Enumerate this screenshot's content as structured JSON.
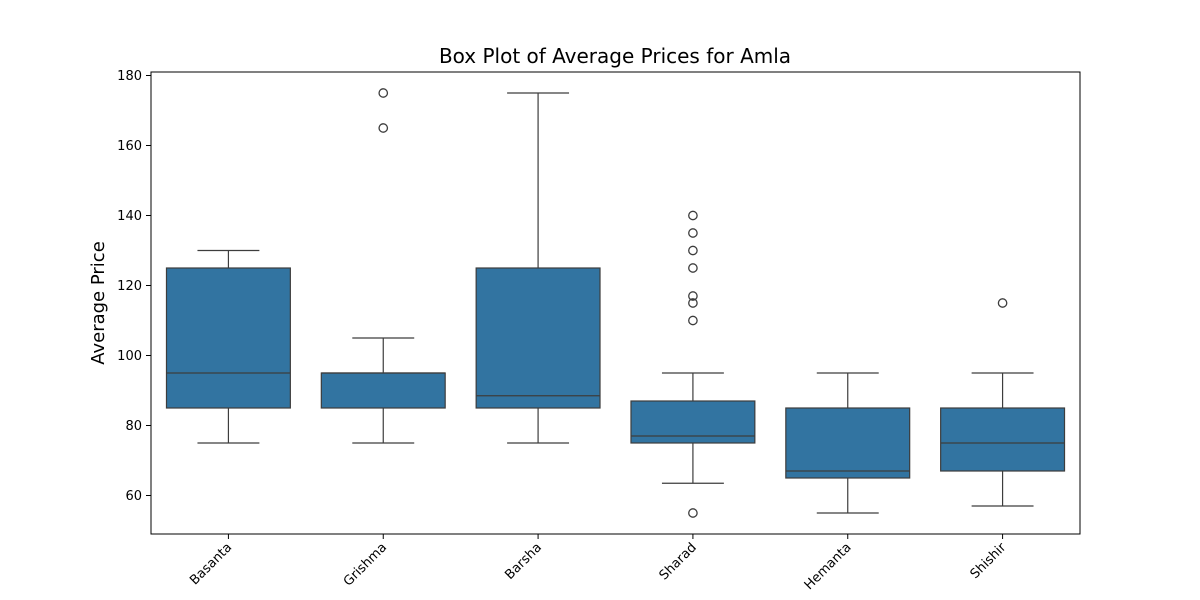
{
  "chart_data": {
    "type": "box",
    "title": "Box Plot of Average Prices for Amla",
    "xlabel": "",
    "ylabel": "Average Price",
    "ylim": [
      49,
      181
    ],
    "yticks": [
      60,
      80,
      100,
      120,
      140,
      160,
      180
    ],
    "grid": false,
    "box_color": "#3274a1",
    "line_color": "#3d3d3d",
    "categories": [
      "Basanta",
      "Grishma",
      "Barsha",
      "Sharad",
      "Hemanta",
      "Shishir"
    ],
    "boxes": [
      {
        "category": "Basanta",
        "whisker_low": 75,
        "q1": 85,
        "median": 95,
        "q3": 125,
        "whisker_high": 130,
        "outliers": []
      },
      {
        "category": "Grishma",
        "whisker_low": 75,
        "q1": 85,
        "median": 95,
        "q3": 95,
        "whisker_high": 105,
        "outliers": [
          165,
          175
        ]
      },
      {
        "category": "Barsha",
        "whisker_low": 75,
        "q1": 85,
        "median": 88.5,
        "q3": 125,
        "whisker_high": 175,
        "outliers": []
      },
      {
        "category": "Sharad",
        "whisker_low": 63.5,
        "q1": 75,
        "median": 77,
        "q3": 87,
        "whisker_high": 95,
        "outliers": [
          55,
          110,
          115,
          117,
          125,
          130,
          135,
          140
        ]
      },
      {
        "category": "Hemanta",
        "whisker_low": 55,
        "q1": 65,
        "median": 67,
        "q3": 85,
        "whisker_high": 95,
        "outliers": []
      },
      {
        "category": "Shishir",
        "whisker_low": 57,
        "q1": 67,
        "median": 75,
        "q3": 85,
        "whisker_high": 95,
        "outliers": [
          115
        ]
      }
    ]
  }
}
